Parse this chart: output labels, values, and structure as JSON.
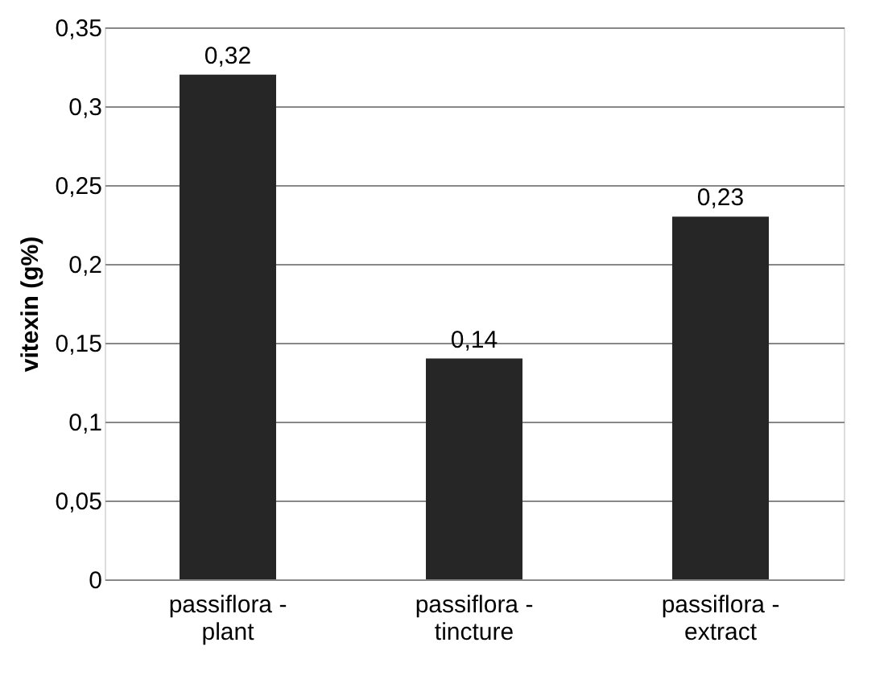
{
  "chart_data": {
    "type": "bar",
    "ylabel": "vitexin (g%)",
    "categories": [
      "passiflora - plant",
      "passiflora - tincture",
      "passiflora - extract"
    ],
    "values": [
      0.32,
      0.14,
      0.23
    ],
    "color": "#262626",
    "value_labels": [
      "0,32",
      "0,14",
      "0,23"
    ],
    "ylim": [
      0,
      0.35
    ],
    "yticks": [
      0,
      {
        "value": 0.05,
        "label": "0,05"
      },
      {
        "value": 0.1,
        "label": "0,1"
      },
      {
        "value": 0.15,
        "label": "0,15"
      },
      {
        "value": 0.2,
        "label": "0,2"
      },
      {
        "value": 0.25,
        "label": "0,25"
      },
      {
        "value": 0.3,
        "label": "0,3"
      },
      {
        "value": 0.35,
        "label": "0,35"
      }
    ],
    "grid": "y"
  }
}
